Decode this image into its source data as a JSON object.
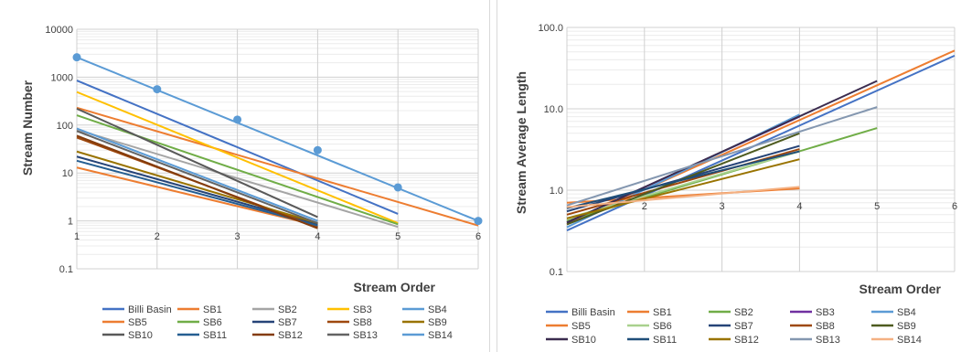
{
  "chart_data": [
    {
      "type": "line",
      "xlabel": "Stream Order",
      "ylabel": "Stream Number",
      "yscale": "log",
      "ylim": [
        0.1,
        10000
      ],
      "xlim": [
        1,
        6
      ],
      "x_ticks": [
        "1",
        "2",
        "3",
        "4",
        "5",
        "6"
      ],
      "y_ticks": [
        "0.1",
        "1",
        "10",
        "100",
        "1000",
        "10000"
      ],
      "grid": true,
      "legend_position": "bottom",
      "series": [
        {
          "name": "Billi Basin",
          "color": "#4472c4",
          "x": [
            1,
            5
          ],
          "y": [
            850,
            1.4
          ]
        },
        {
          "name": "SB1",
          "color": "#ed7d31",
          "x": [
            1,
            6
          ],
          "y": [
            230,
            0.8
          ]
        },
        {
          "name": "SB2",
          "color": "#a5a5a5",
          "x": [
            1,
            5
          ],
          "y": [
            80,
            0.75
          ]
        },
        {
          "name": "SB3",
          "color": "#ffc000",
          "x": [
            1,
            5
          ],
          "y": [
            490,
            0.9
          ]
        },
        {
          "name": "SB4",
          "color": "#5b9bd5",
          "x": [
            1,
            4
          ],
          "y": [
            85,
            1.0
          ]
        },
        {
          "name": "SB5",
          "color": "#ed7d31",
          "x": [
            1,
            4
          ],
          "y": [
            13,
            0.8
          ]
        },
        {
          "name": "SB6",
          "color": "#70ad47",
          "x": [
            1,
            5
          ],
          "y": [
            160,
            0.85
          ]
        },
        {
          "name": "SB7",
          "color": "#264478",
          "x": [
            1,
            4
          ],
          "y": [
            22,
            0.85
          ]
        },
        {
          "name": "SB8",
          "color": "#9e480e",
          "x": [
            1,
            4
          ],
          "y": [
            55,
            0.75
          ]
        },
        {
          "name": "SB9",
          "color": "#997300",
          "x": [
            1,
            4
          ],
          "y": [
            28,
            0.9
          ]
        },
        {
          "name": "SB10",
          "color": "#595959",
          "x": [
            1,
            4
          ],
          "y": [
            220,
            1.2
          ]
        },
        {
          "name": "SB11",
          "color": "#255e91",
          "x": [
            1,
            4
          ],
          "y": [
            18,
            0.8
          ]
        },
        {
          "name": "SB12",
          "color": "#843c0c",
          "x": [
            1,
            4
          ],
          "y": [
            60,
            0.7
          ]
        },
        {
          "name": "SB13",
          "color": "#636363",
          "x": [
            1,
            4
          ],
          "y": [
            75,
            0.9
          ]
        },
        {
          "name": "SB14",
          "color": "#5b9bd5",
          "x": [
            1,
            6
          ],
          "y": [
            2600,
            1.0
          ],
          "markers": [
            2600,
            560,
            130,
            30,
            5,
            1
          ]
        }
      ]
    },
    {
      "type": "line",
      "xlabel": "Stream Order",
      "ylabel": "Stream Average Length",
      "yscale": "log",
      "ylim": [
        0.1,
        100
      ],
      "xlim": [
        1,
        6
      ],
      "x_ticks": [
        "2",
        "3",
        "4",
        "5",
        "6"
      ],
      "y_ticks": [
        "0.1",
        "1.0",
        "10.0",
        "100.0"
      ],
      "grid": true,
      "legend_position": "bottom",
      "series": [
        {
          "name": "Billi Basin",
          "color": "#4472c4",
          "x": [
            1,
            6
          ],
          "y": [
            0.32,
            45
          ]
        },
        {
          "name": "SB1",
          "color": "#ed7d31",
          "x": [
            1,
            6
          ],
          "y": [
            0.38,
            52
          ]
        },
        {
          "name": "SB2",
          "color": "#70ad47",
          "x": [
            1,
            5
          ],
          "y": [
            0.42,
            5.8
          ]
        },
        {
          "name": "SB3",
          "color": "#7030a0",
          "x": [
            1,
            4
          ],
          "y": [
            0.4,
            8.0
          ]
        },
        {
          "name": "SB4",
          "color": "#5b9bd5",
          "x": [
            1,
            4
          ],
          "y": [
            0.35,
            8.5
          ]
        },
        {
          "name": "SB5",
          "color": "#ed7d31",
          "x": [
            1,
            4
          ],
          "y": [
            0.7,
            1.05
          ]
        },
        {
          "name": "SB6",
          "color": "#a9d18e",
          "x": [
            1,
            4
          ],
          "y": [
            0.45,
            3.0
          ]
        },
        {
          "name": "SB7",
          "color": "#264478",
          "x": [
            1,
            4
          ],
          "y": [
            0.55,
            3.5
          ]
        },
        {
          "name": "SB8",
          "color": "#9e480e",
          "x": [
            1,
            4
          ],
          "y": [
            0.5,
            3.2
          ]
        },
        {
          "name": "SB9",
          "color": "#4e5b1f",
          "x": [
            1,
            4
          ],
          "y": [
            0.38,
            5.0
          ]
        },
        {
          "name": "SB10",
          "color": "#3b2c4f",
          "x": [
            1,
            5
          ],
          "y": [
            0.4,
            22
          ]
        },
        {
          "name": "SB11",
          "color": "#1f4e79",
          "x": [
            1,
            4
          ],
          "y": [
            0.6,
            3.0
          ]
        },
        {
          "name": "SB12",
          "color": "#997300",
          "x": [
            1,
            4
          ],
          "y": [
            0.45,
            2.4
          ]
        },
        {
          "name": "SB13",
          "color": "#8497b0",
          "x": [
            1,
            5
          ],
          "y": [
            0.65,
            10.5
          ]
        },
        {
          "name": "SB14",
          "color": "#f4b183",
          "x": [
            1,
            4
          ],
          "y": [
            0.62,
            1.1
          ]
        }
      ]
    }
  ]
}
